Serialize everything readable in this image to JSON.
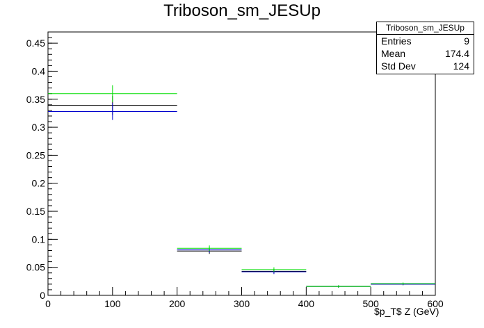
{
  "chart_data": {
    "type": "histogram",
    "title": "Triboson_sm_JESUp",
    "xlabel": "$p_T$ Z (GeV)",
    "ylabel": "",
    "xlim": [
      0,
      600
    ],
    "ylim": [
      0,
      0.47
    ],
    "x_ticks": [
      0,
      100,
      200,
      300,
      400,
      500,
      600
    ],
    "y_ticks": [
      0,
      0.05,
      0.1,
      0.15,
      0.2,
      0.25,
      0.3,
      0.35,
      0.4,
      0.45
    ],
    "y_tick_labels": [
      "0",
      "0.05",
      "0.1",
      "0.15",
      "0.2",
      "0.25",
      "0.3",
      "0.35",
      "0.4",
      "0.45"
    ],
    "bin_edges": [
      0,
      200,
      300,
      400,
      500,
      600
    ],
    "series": [
      {
        "color": "#000000",
        "values": [
          0.339,
          0.079,
          0.043,
          0.016,
          0.02
        ],
        "errors": [
          0.017,
          0.005,
          0.004,
          0.002,
          0.002
        ]
      },
      {
        "color": "#0000cc",
        "values": [
          0.328,
          0.081,
          0.042,
          0.016,
          0.02
        ],
        "errors": [
          0.015,
          0.005,
          0.004,
          0.002,
          0.002
        ]
      },
      {
        "color": "#00dd00",
        "values": [
          0.36,
          0.084,
          0.046,
          0.016,
          0.021
        ],
        "errors": [
          0.015,
          0.005,
          0.004,
          0.002,
          0.002
        ]
      }
    ]
  },
  "stats_box": {
    "title": "Triboson_sm_JESUp",
    "rows": [
      {
        "label": "Entries",
        "value": "9"
      },
      {
        "label": "Mean",
        "value": "174.4"
      },
      {
        "label": "Std Dev",
        "value": "124"
      }
    ]
  }
}
